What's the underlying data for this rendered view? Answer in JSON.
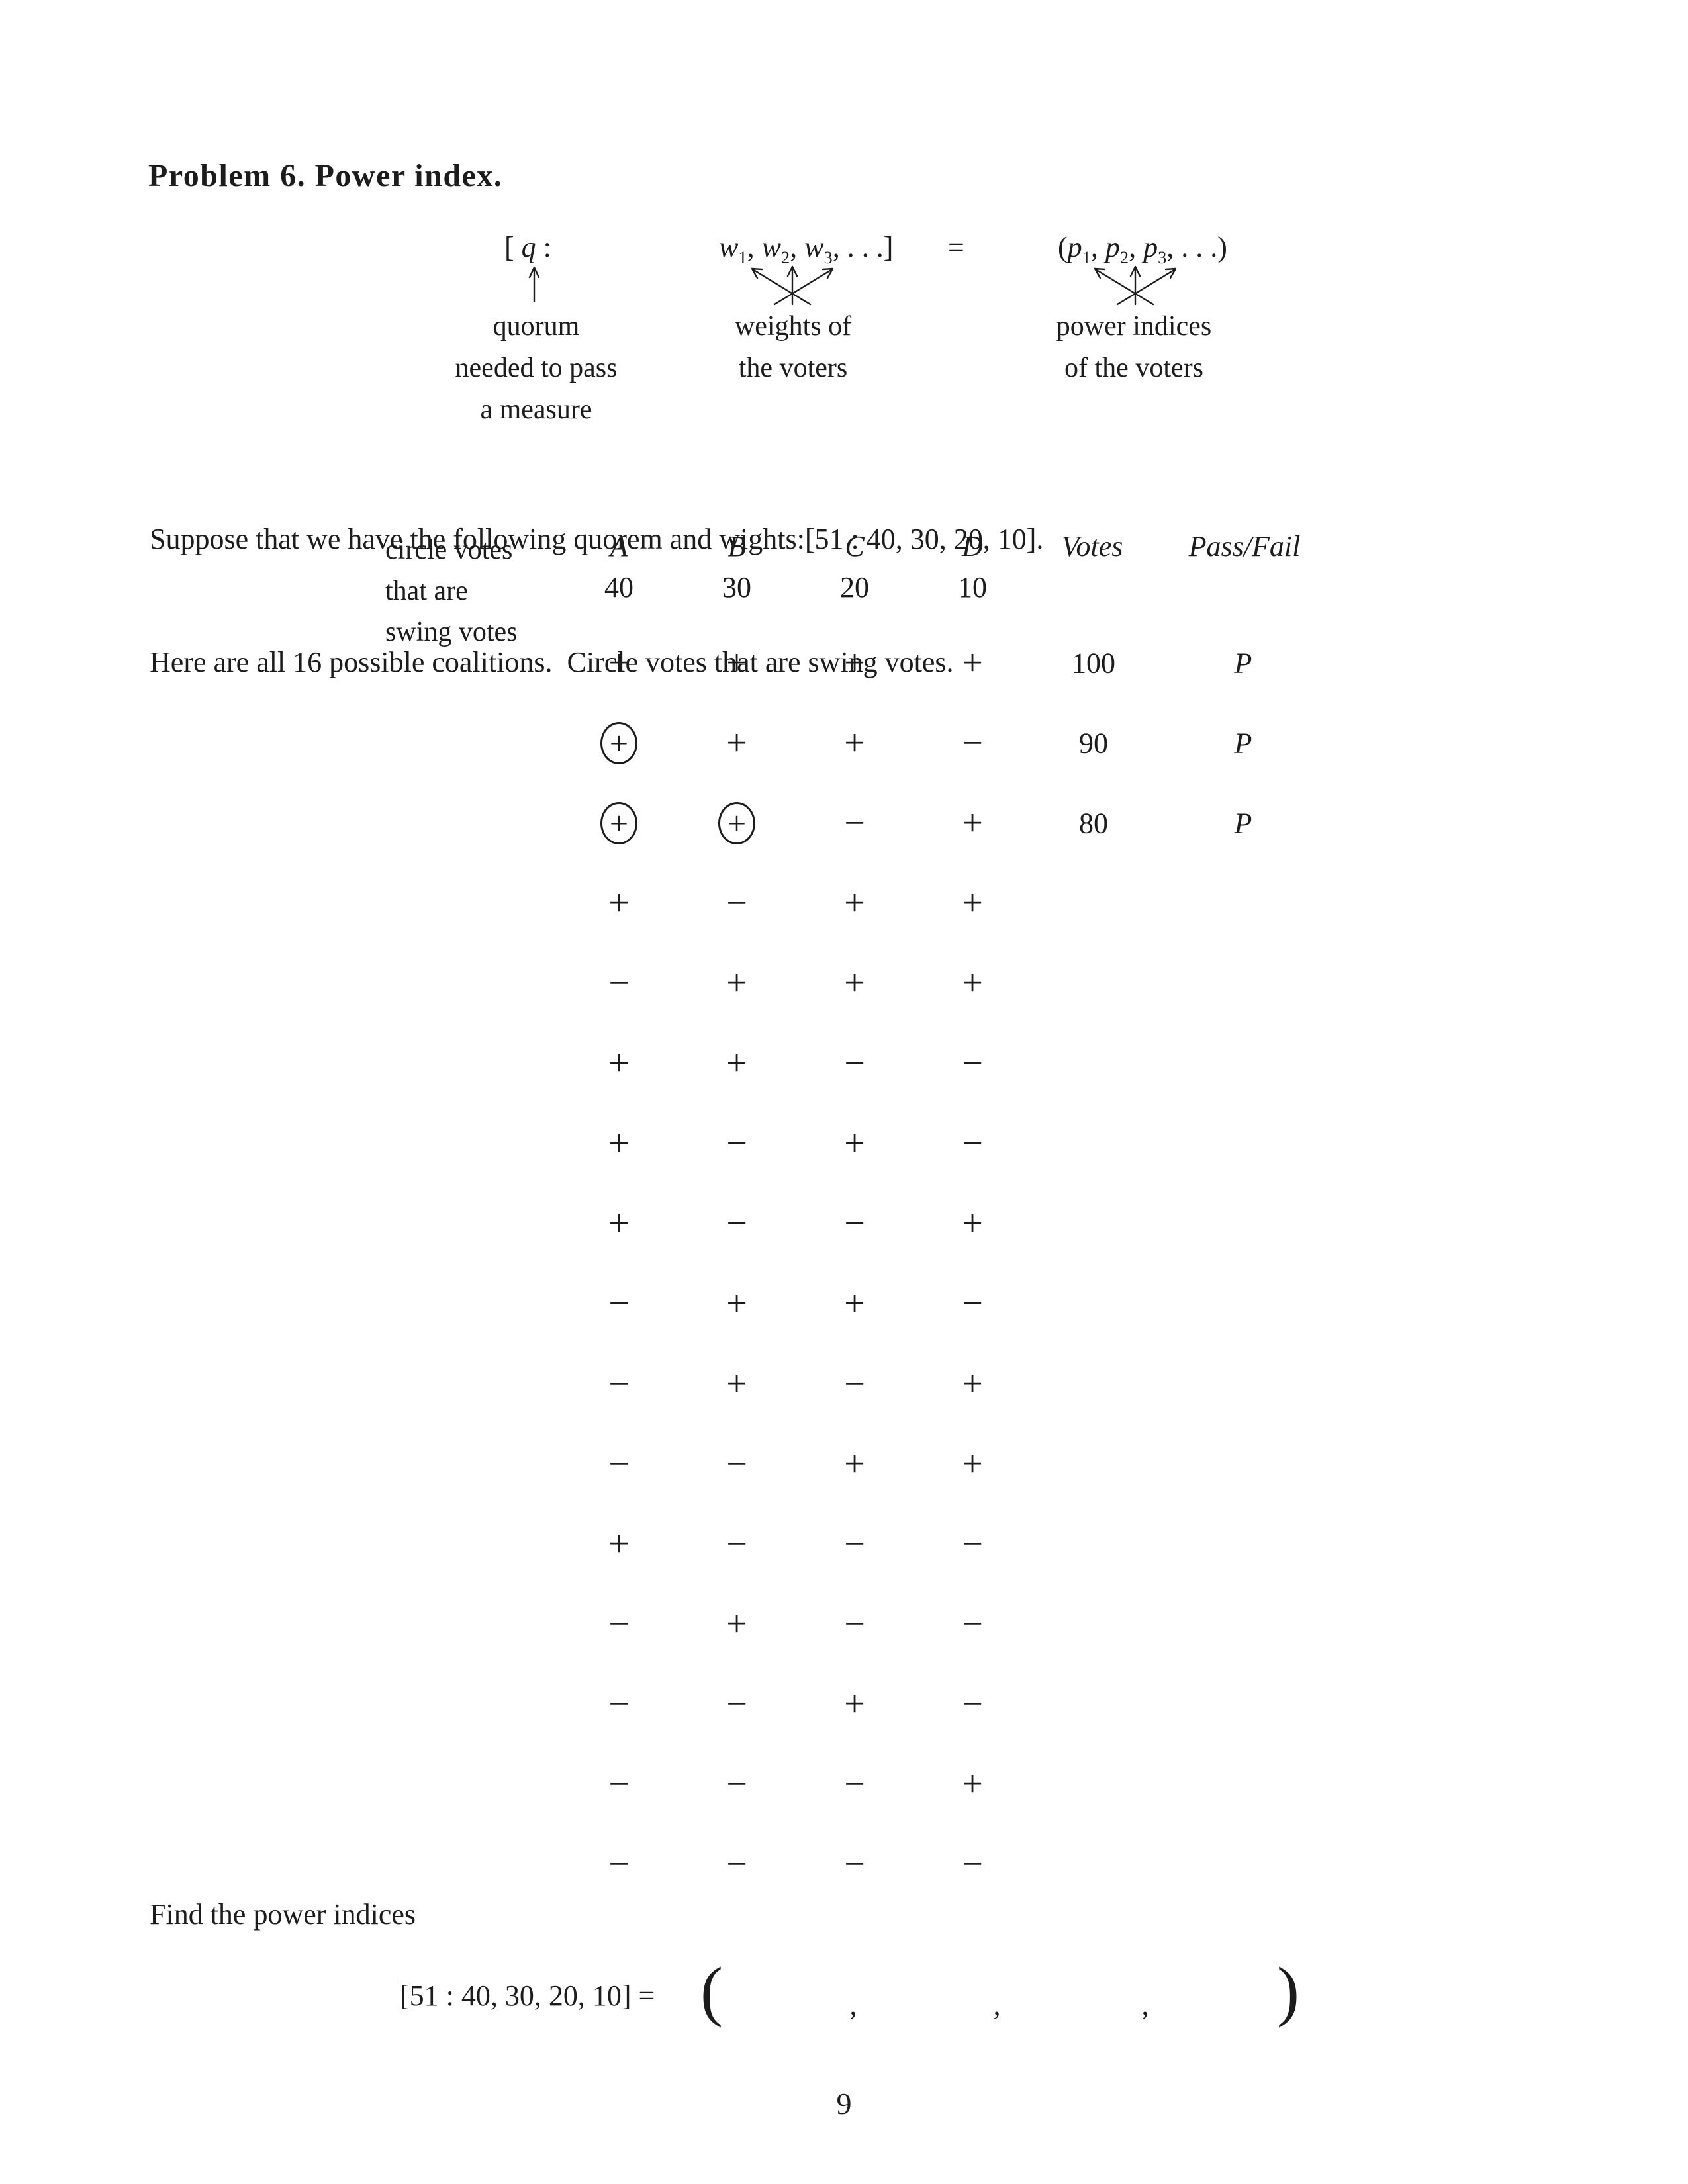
{
  "page": {
    "title": "Problem 6. Power index.",
    "page_number": "9",
    "ink_color": "#1c1c1c",
    "paper_color": "#ffffff"
  },
  "formula": {
    "lhs_open": "[ ",
    "quorum_var": "q",
    "colon": " :",
    "weight_vars": [
      "w",
      "w",
      "w"
    ],
    "weight_subs": [
      "1",
      "2",
      "3"
    ],
    "weights_tail": ", . . .]",
    "separator": ", ",
    "equals": "=",
    "rhs_open": "(",
    "power_vars": [
      "p",
      "p",
      "p"
    ],
    "power_subs": [
      "1",
      "2",
      "3"
    ],
    "powers_tail": ", . . .)",
    "labels": {
      "quorum": [
        "quorum",
        "needed to pass",
        "a measure"
      ],
      "weights": [
        "weights of",
        "the voters"
      ],
      "powers": [
        "power indices",
        "of the voters"
      ]
    }
  },
  "intro": {
    "line1": "Suppose that we have the following quorem and wights:[51 : 40, 30, 20, 10].",
    "line2": "Here are all 16 possible coalitions.  Circle votes that are swing votes."
  },
  "table": {
    "note_lines": [
      "circle votes",
      "that are",
      "swing votes"
    ],
    "columns": [
      {
        "name": "A",
        "weight": "40"
      },
      {
        "name": "B",
        "weight": "30"
      },
      {
        "name": "C",
        "weight": "20"
      },
      {
        "name": "D",
        "weight": "10"
      }
    ],
    "votes_header": "Votes",
    "result_header": "Pass/Fail",
    "rows": [
      {
        "signs": [
          "+",
          "+",
          "+",
          "+"
        ],
        "circled": [
          false,
          false,
          false,
          false
        ],
        "votes": "100",
        "result": "P"
      },
      {
        "signs": [
          "+",
          "+",
          "+",
          "−"
        ],
        "circled": [
          true,
          false,
          false,
          false
        ],
        "votes": "90",
        "result": "P"
      },
      {
        "signs": [
          "+",
          "+",
          "−",
          "+"
        ],
        "circled": [
          true,
          true,
          false,
          false
        ],
        "votes": "80",
        "result": "P"
      },
      {
        "signs": [
          "+",
          "−",
          "+",
          "+"
        ],
        "circled": [
          false,
          false,
          false,
          false
        ],
        "votes": "",
        "result": ""
      },
      {
        "signs": [
          "−",
          "+",
          "+",
          "+"
        ],
        "circled": [
          false,
          false,
          false,
          false
        ],
        "votes": "",
        "result": ""
      },
      {
        "signs": [
          "+",
          "+",
          "−",
          "−"
        ],
        "circled": [
          false,
          false,
          false,
          false
        ],
        "votes": "",
        "result": ""
      },
      {
        "signs": [
          "+",
          "−",
          "+",
          "−"
        ],
        "circled": [
          false,
          false,
          false,
          false
        ],
        "votes": "",
        "result": ""
      },
      {
        "signs": [
          "+",
          "−",
          "−",
          "+"
        ],
        "circled": [
          false,
          false,
          false,
          false
        ],
        "votes": "",
        "result": ""
      },
      {
        "signs": [
          "−",
          "+",
          "+",
          "−"
        ],
        "circled": [
          false,
          false,
          false,
          false
        ],
        "votes": "",
        "result": ""
      },
      {
        "signs": [
          "−",
          "+",
          "−",
          "+"
        ],
        "circled": [
          false,
          false,
          false,
          false
        ],
        "votes": "",
        "result": ""
      },
      {
        "signs": [
          "−",
          "−",
          "+",
          "+"
        ],
        "circled": [
          false,
          false,
          false,
          false
        ],
        "votes": "",
        "result": ""
      },
      {
        "signs": [
          "+",
          "−",
          "−",
          "−"
        ],
        "circled": [
          false,
          false,
          false,
          false
        ],
        "votes": "",
        "result": ""
      },
      {
        "signs": [
          "−",
          "+",
          "−",
          "−"
        ],
        "circled": [
          false,
          false,
          false,
          false
        ],
        "votes": "",
        "result": ""
      },
      {
        "signs": [
          "−",
          "−",
          "+",
          "−"
        ],
        "circled": [
          false,
          false,
          false,
          false
        ],
        "votes": "",
        "result": ""
      },
      {
        "signs": [
          "−",
          "−",
          "−",
          "+"
        ],
        "circled": [
          false,
          false,
          false,
          false
        ],
        "votes": "",
        "result": ""
      },
      {
        "signs": [
          "−",
          "−",
          "−",
          "−"
        ],
        "circled": [
          false,
          false,
          false,
          false
        ],
        "votes": "",
        "result": ""
      }
    ]
  },
  "closing": {
    "find_text": "Find the power indices",
    "equation_lhs": "[51 : 40, 30, 20, 10] =",
    "open_paren": "(",
    "commas": [
      ",",
      ",",
      ","
    ],
    "close_paren": ")"
  }
}
